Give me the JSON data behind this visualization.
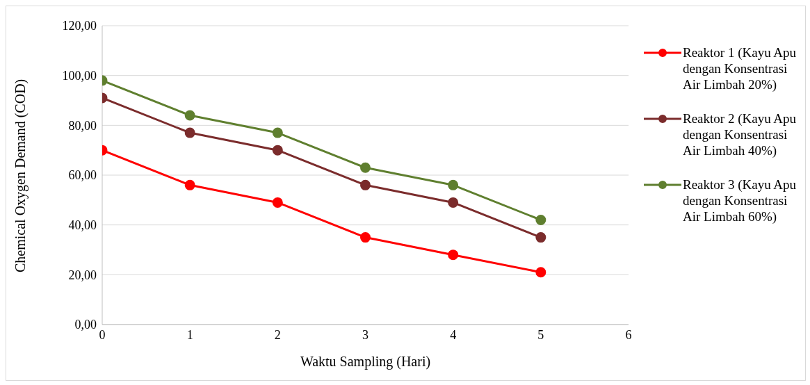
{
  "chart_data": {
    "type": "line",
    "xlabel": "Waktu Sampling (Hari)",
    "ylabel": "Chemical Oxygen Demand (COD)",
    "x": [
      0,
      1,
      2,
      3,
      4,
      5
    ],
    "series": [
      {
        "name": "Reaktor 1 (Kayu Apu dengan Konsentrasi Air Limbah 20%)",
        "color": "#ff0000",
        "values": [
          70,
          56,
          49,
          35,
          28,
          21
        ]
      },
      {
        "name": "Reaktor 2 (Kayu Apu dengan Konsentrasi Air Limbah 40%)",
        "color": "#7b2c2c",
        "values": [
          91,
          77,
          70,
          56,
          49,
          35
        ]
      },
      {
        "name": "Reaktor 3 (Kayu Apu dengan Konsentrasi Air Limbah 60%)",
        "color": "#5f7f2f",
        "values": [
          98,
          84,
          77,
          63,
          56,
          42
        ]
      }
    ],
    "xlim": [
      0,
      6
    ],
    "xticks": [
      0,
      1,
      2,
      3,
      4,
      5,
      6
    ],
    "ylim": [
      0,
      120
    ],
    "yticks": [
      {
        "value": 0,
        "label": "0,00"
      },
      {
        "value": 20,
        "label": "20,00"
      },
      {
        "value": 40,
        "label": "40,00"
      },
      {
        "value": 60,
        "label": "60,00"
      },
      {
        "value": 80,
        "label": "80,00"
      },
      {
        "value": 100,
        "label": "100,00"
      },
      {
        "value": 120,
        "label": "120,00"
      }
    ],
    "grid": "y",
    "legend": "right",
    "marker": "circle",
    "line_style": "solid"
  }
}
